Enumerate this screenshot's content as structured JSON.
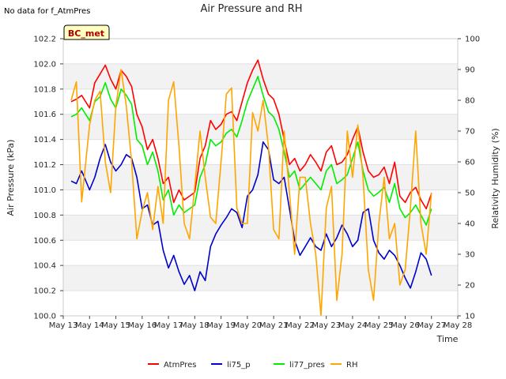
{
  "note": "No data for f_AtmPres",
  "badge": "BC_met",
  "chart_data": {
    "type": "line",
    "title": "Air Pressure and RH",
    "xlabel": "Time",
    "ylabel": "Air Pressure (kPa)",
    "y2label": "Relativity Humidity (%)",
    "ylim": [
      100.0,
      102.2
    ],
    "y2lim": [
      10,
      100
    ],
    "yticks": [
      "100.0",
      "100.2",
      "100.4",
      "100.6",
      "100.8",
      "101.0",
      "101.2",
      "101.4",
      "101.6",
      "101.8",
      "102.0",
      "102.2"
    ],
    "y2ticks": [
      "10",
      "20",
      "30",
      "40",
      "50",
      "60",
      "70",
      "80",
      "90",
      "100"
    ],
    "xticks": [
      "May 13",
      "May 14",
      "May 15",
      "May 16",
      "May 17",
      "May 18",
      "May 19",
      "May 20",
      "May 21",
      "May 22",
      "May 23",
      "May 24",
      "May 25",
      "May 26",
      "May 27",
      "May 28"
    ],
    "xlim": [
      13.0,
      28.0
    ],
    "legend_position": "bottom",
    "colors": {
      "AtmPres": "#ff0000",
      "li75_p": "#0000cc",
      "li77_pres": "#00ee00",
      "RH": "#ffa500"
    },
    "series": [
      {
        "name": "AtmPres",
        "axis": "left",
        "x": [
          13.3,
          13.5,
          13.7,
          14.0,
          14.2,
          14.4,
          14.6,
          14.8,
          15.0,
          15.2,
          15.4,
          15.6,
          15.8,
          16.0,
          16.2,
          16.4,
          16.6,
          16.8,
          17.0,
          17.2,
          17.4,
          17.6,
          17.8,
          18.0,
          18.2,
          18.4,
          18.6,
          18.8,
          19.0,
          19.2,
          19.4,
          19.6,
          19.8,
          20.0,
          20.2,
          20.4,
          20.6,
          20.8,
          21.0,
          21.2,
          21.4,
          21.6,
          21.8,
          22.0,
          22.2,
          22.4,
          22.6,
          22.8,
          23.0,
          23.2,
          23.4,
          23.6,
          23.8,
          24.0,
          24.2,
          24.4,
          24.6,
          24.8,
          25.0,
          25.2,
          25.4,
          25.6,
          25.8,
          26.0,
          26.2,
          26.4,
          26.6,
          26.8,
          27.0
        ],
        "values": [
          101.7,
          101.72,
          101.75,
          101.65,
          101.85,
          101.92,
          101.99,
          101.88,
          101.8,
          101.95,
          101.9,
          101.82,
          101.6,
          101.5,
          101.32,
          101.4,
          101.25,
          101.05,
          101.1,
          100.9,
          101.0,
          100.92,
          100.95,
          100.98,
          101.25,
          101.35,
          101.55,
          101.48,
          101.52,
          101.6,
          101.62,
          101.55,
          101.7,
          101.85,
          101.95,
          102.03,
          101.88,
          101.76,
          101.72,
          101.6,
          101.4,
          101.2,
          101.25,
          101.15,
          101.2,
          101.28,
          101.22,
          101.15,
          101.3,
          101.35,
          101.2,
          101.22,
          101.28,
          101.4,
          101.5,
          101.3,
          101.15,
          101.1,
          101.12,
          101.18,
          101.05,
          101.22,
          100.95,
          100.9,
          100.98,
          101.02,
          100.92,
          100.85,
          100.97
        ]
      },
      {
        "name": "li75_p",
        "axis": "left",
        "x": [
          13.3,
          13.5,
          13.7,
          14.0,
          14.2,
          14.4,
          14.6,
          14.8,
          15.0,
          15.2,
          15.4,
          15.6,
          15.8,
          16.0,
          16.2,
          16.4,
          16.6,
          16.8,
          17.0,
          17.2,
          17.4,
          17.6,
          17.8,
          18.0,
          18.2,
          18.4,
          18.6,
          18.8,
          19.0,
          19.2,
          19.4,
          19.6,
          19.8,
          20.0,
          20.2,
          20.4,
          20.6,
          20.8,
          21.0,
          21.2,
          21.4,
          21.6,
          21.8,
          22.0,
          22.2,
          22.4,
          22.6,
          22.8,
          23.0,
          23.2,
          23.4,
          23.6,
          23.8,
          24.0,
          24.2,
          24.4,
          24.6,
          24.8,
          25.0,
          25.2,
          25.4,
          25.6,
          25.8,
          26.0,
          26.2,
          26.4,
          26.6,
          26.8,
          27.0
        ],
        "values": [
          101.07,
          101.05,
          101.15,
          101.0,
          101.1,
          101.25,
          101.36,
          101.22,
          101.15,
          101.2,
          101.28,
          101.25,
          101.1,
          100.85,
          100.88,
          100.72,
          100.75,
          100.52,
          100.38,
          100.48,
          100.35,
          100.25,
          100.32,
          100.2,
          100.35,
          100.28,
          100.55,
          100.65,
          100.72,
          100.78,
          100.85,
          100.82,
          100.7,
          100.95,
          101.0,
          101.12,
          101.38,
          101.32,
          101.08,
          101.05,
          101.1,
          100.85,
          100.6,
          100.48,
          100.55,
          100.62,
          100.55,
          100.52,
          100.65,
          100.55,
          100.62,
          100.72,
          100.65,
          100.55,
          100.6,
          100.82,
          100.85,
          100.6,
          100.5,
          100.45,
          100.52,
          100.48,
          100.4,
          100.3,
          100.22,
          100.35,
          100.5,
          100.45,
          100.32
        ]
      },
      {
        "name": "li77_pres",
        "axis": "left",
        "x": [
          13.3,
          13.5,
          13.7,
          14.0,
          14.2,
          14.4,
          14.6,
          14.8,
          15.0,
          15.2,
          15.4,
          15.6,
          15.8,
          16.0,
          16.2,
          16.4,
          16.6,
          16.8,
          17.0,
          17.2,
          17.4,
          17.6,
          17.8,
          18.0,
          18.2,
          18.4,
          18.6,
          18.8,
          19.0,
          19.2,
          19.4,
          19.6,
          19.8,
          20.0,
          20.2,
          20.4,
          20.6,
          20.8,
          21.0,
          21.2,
          21.4,
          21.6,
          21.8,
          22.0,
          22.2,
          22.4,
          22.6,
          22.8,
          23.0,
          23.2,
          23.4,
          23.6,
          23.8,
          24.0,
          24.2,
          24.4,
          24.6,
          24.8,
          25.0,
          25.2,
          25.4,
          25.6,
          25.8,
          26.0,
          26.2,
          26.4,
          26.6,
          26.8,
          27.0
        ],
        "values": [
          101.58,
          101.6,
          101.65,
          101.55,
          101.7,
          101.74,
          101.85,
          101.72,
          101.65,
          101.8,
          101.75,
          101.68,
          101.4,
          101.35,
          101.2,
          101.3,
          101.15,
          100.92,
          101.0,
          100.8,
          100.88,
          100.82,
          100.85,
          100.88,
          101.1,
          101.2,
          101.4,
          101.35,
          101.38,
          101.45,
          101.48,
          101.42,
          101.55,
          101.7,
          101.8,
          101.9,
          101.75,
          101.62,
          101.58,
          101.48,
          101.3,
          101.1,
          101.15,
          101.0,
          101.05,
          101.1,
          101.05,
          101.0,
          101.15,
          101.2,
          101.05,
          101.08,
          101.12,
          101.25,
          101.38,
          101.15,
          101.0,
          100.95,
          100.98,
          101.02,
          100.9,
          101.05,
          100.85,
          100.78,
          100.82,
          100.88,
          100.8,
          100.72,
          100.85
        ]
      },
      {
        "name": "RH",
        "axis": "right",
        "x": [
          13.3,
          13.5,
          13.7,
          14.0,
          14.2,
          14.4,
          14.6,
          14.8,
          15.0,
          15.2,
          15.4,
          15.6,
          15.8,
          16.0,
          16.2,
          16.4,
          16.6,
          16.8,
          17.0,
          17.2,
          17.4,
          17.6,
          17.8,
          18.0,
          18.2,
          18.4,
          18.6,
          18.8,
          19.0,
          19.2,
          19.4,
          19.6,
          19.8,
          20.0,
          20.2,
          20.4,
          20.6,
          20.8,
          21.0,
          21.2,
          21.4,
          21.6,
          21.8,
          22.0,
          22.2,
          22.4,
          22.6,
          22.8,
          23.0,
          23.2,
          23.4,
          23.6,
          23.8,
          24.0,
          24.2,
          24.4,
          24.6,
          24.8,
          25.0,
          25.2,
          25.4,
          25.6,
          25.8,
          26.0,
          26.2,
          26.4,
          26.6,
          26.8,
          27.0
        ],
        "values": [
          80,
          86,
          47,
          72,
          80,
          83,
          60,
          50,
          78,
          90,
          78,
          60,
          35,
          44,
          50,
          38,
          52,
          40,
          80,
          86,
          65,
          40,
          35,
          52,
          70,
          55,
          42,
          40,
          60,
          82,
          84,
          45,
          40,
          40,
          76,
          70,
          80,
          65,
          38,
          35,
          70,
          50,
          30,
          55,
          55,
          40,
          30,
          10,
          45,
          52,
          15,
          30,
          70,
          55,
          72,
          55,
          25,
          15,
          40,
          55,
          35,
          40,
          20,
          25,
          45,
          70,
          40,
          30,
          50
        ]
      }
    ]
  }
}
